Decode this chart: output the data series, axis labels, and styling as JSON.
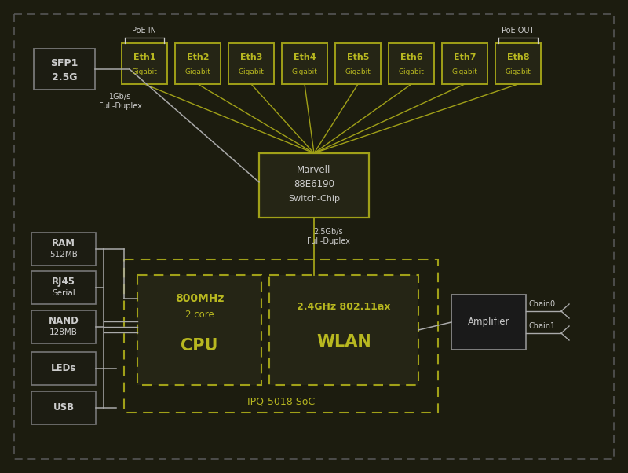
{
  "bg_color": "#1c1c0f",
  "yellow_color": "#b8b820",
  "white_color": "#cccccc",
  "gray_color": "#888888",
  "eth_box_fc": "#252515",
  "eth_box_ec": "#a0a018",
  "switch_box_fc": "#252515",
  "switch_box_ec": "#a0a018",
  "soc_border_color": "#a0a018",
  "cpu_box_fc": "#252515",
  "cpu_box_ec": "#a0a018",
  "wlan_box_fc": "#252515",
  "wlan_box_ec": "#a0a018",
  "amp_box_fc": "#1a1a1a",
  "amp_box_ec": "#888888",
  "misc_box_fc": "#1c1c12",
  "misc_box_ec": "#777777",
  "sfp_box_fc": "#1c1c12",
  "sfp_box_ec": "#777777",
  "outer_border_color": "#555555",
  "line_color_yellow": "#a0a018",
  "line_color_white": "#aaaaaa",
  "eth_ports": [
    "Eth1\nGigabit",
    "Eth2\nGigabit",
    "Eth3\nGigabit",
    "Eth4\nGigabit",
    "Eth5\nGigabit",
    "Eth6\nGigabit",
    "Eth7\nGigabit",
    "Eth8\nGigabit"
  ],
  "misc_labels": [
    "RAM\n512MB",
    "RJ45\nSerial",
    "NAND\n128MB",
    "LEDs",
    "USB"
  ]
}
